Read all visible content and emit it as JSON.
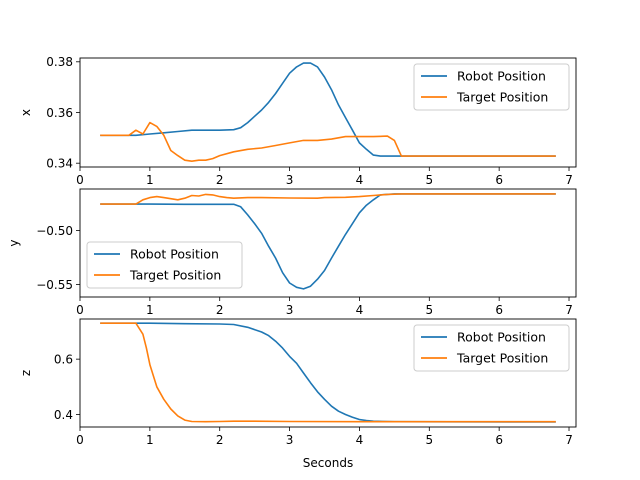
{
  "colors": {
    "robot": "#1f77b4",
    "target": "#ff7f0e"
  },
  "chart_data": [
    {
      "type": "line",
      "ylabel": "x",
      "xlim": [
        0,
        7.1
      ],
      "ylim": [
        0.3385,
        0.3815
      ],
      "xticks": [
        0,
        1,
        2,
        3,
        4,
        5,
        6,
        7
      ],
      "yticks": [
        0.34,
        0.36,
        0.38
      ],
      "ytick_labels": [
        "0.34",
        "0.36",
        "0.38"
      ],
      "legend": "top-right",
      "series": [
        {
          "name": "Robot Position",
          "color": "#1f77b4",
          "x": [
            0.3,
            0.8,
            1.0,
            1.2,
            1.4,
            1.6,
            1.8,
            2.0,
            2.2,
            2.3,
            2.4,
            2.5,
            2.6,
            2.7,
            2.8,
            2.9,
            3.0,
            3.1,
            3.2,
            3.3,
            3.4,
            3.5,
            3.6,
            3.7,
            3.8,
            3.9,
            4.0,
            4.1,
            4.2,
            4.3,
            4.5,
            6.8
          ],
          "y": [
            0.351,
            0.351,
            0.3515,
            0.352,
            0.3525,
            0.353,
            0.353,
            0.353,
            0.3532,
            0.354,
            0.356,
            0.3585,
            0.361,
            0.364,
            0.3675,
            0.3715,
            0.3755,
            0.378,
            0.3795,
            0.3795,
            0.378,
            0.374,
            0.369,
            0.363,
            0.358,
            0.353,
            0.348,
            0.3455,
            0.3432,
            0.3428,
            0.3428,
            0.3428
          ]
        },
        {
          "name": "Target Position",
          "color": "#ff7f0e",
          "x": [
            0.3,
            0.5,
            0.7,
            0.8,
            0.9,
            1.0,
            1.1,
            1.2,
            1.3,
            1.4,
            1.5,
            1.6,
            1.7,
            1.8,
            1.9,
            2.0,
            2.2,
            2.4,
            2.6,
            2.8,
            3.0,
            3.2,
            3.4,
            3.6,
            3.8,
            4.0,
            4.2,
            4.4,
            4.5,
            4.6,
            4.7,
            5.0,
            6.8
          ],
          "y": [
            0.351,
            0.351,
            0.351,
            0.353,
            0.3515,
            0.356,
            0.3545,
            0.351,
            0.345,
            0.343,
            0.3412,
            0.3408,
            0.3412,
            0.3412,
            0.3418,
            0.343,
            0.3445,
            0.3455,
            0.346,
            0.347,
            0.348,
            0.349,
            0.349,
            0.3495,
            0.3505,
            0.3505,
            0.3505,
            0.3507,
            0.349,
            0.3428,
            0.3428,
            0.3428,
            0.3428
          ]
        }
      ]
    },
    {
      "type": "line",
      "ylabel": "y",
      "xlim": [
        0,
        7.1
      ],
      "ylim": [
        -0.5615,
        -0.4615
      ],
      "xticks": [
        0,
        1,
        2,
        3,
        4,
        5,
        6,
        7
      ],
      "yticks": [
        -0.5,
        -0.55
      ],
      "ytick_labels": [
        "−0.50",
        "−0.55"
      ],
      "legend": "bottom-left",
      "series": [
        {
          "name": "Robot Position",
          "color": "#1f77b4",
          "x": [
            0.3,
            1.0,
            1.5,
            2.0,
            2.2,
            2.3,
            2.4,
            2.5,
            2.6,
            2.7,
            2.8,
            2.9,
            3.0,
            3.1,
            3.2,
            3.3,
            3.4,
            3.5,
            3.6,
            3.7,
            3.8,
            3.9,
            4.0,
            4.1,
            4.2,
            4.3,
            4.5,
            6.8
          ],
          "y": [
            -0.4755,
            -0.4755,
            -0.4757,
            -0.4757,
            -0.4757,
            -0.478,
            -0.4855,
            -0.4935,
            -0.5025,
            -0.5145,
            -0.5255,
            -0.539,
            -0.5485,
            -0.5525,
            -0.554,
            -0.5515,
            -0.545,
            -0.537,
            -0.5255,
            -0.5145,
            -0.5035,
            -0.4935,
            -0.4835,
            -0.4765,
            -0.4715,
            -0.467,
            -0.466,
            -0.466
          ]
        },
        {
          "name": "Target Position",
          "color": "#ff7f0e",
          "x": [
            0.3,
            0.8,
            0.9,
            1.0,
            1.1,
            1.2,
            1.3,
            1.4,
            1.5,
            1.6,
            1.7,
            1.8,
            1.9,
            2.0,
            2.1,
            2.2,
            2.4,
            2.6,
            3.0,
            3.4,
            3.5,
            3.8,
            4.0,
            4.2,
            4.4,
            4.6,
            6.8
          ],
          "y": [
            -0.4755,
            -0.4755,
            -0.4715,
            -0.4695,
            -0.4685,
            -0.4695,
            -0.4705,
            -0.4715,
            -0.47,
            -0.4675,
            -0.468,
            -0.4665,
            -0.467,
            -0.4685,
            -0.4695,
            -0.47,
            -0.4695,
            -0.4695,
            -0.4698,
            -0.47,
            -0.4695,
            -0.4692,
            -0.4685,
            -0.4675,
            -0.4665,
            -0.466,
            -0.466
          ]
        }
      ]
    },
    {
      "type": "line",
      "ylabel": "z",
      "xlabel": "Seconds",
      "xlim": [
        0,
        7.1
      ],
      "ylim": [
        0.355,
        0.745
      ],
      "xticks": [
        0,
        1,
        2,
        3,
        4,
        5,
        6,
        7
      ],
      "yticks": [
        0.4,
        0.6
      ],
      "ytick_labels": [
        "0.4",
        "0.6"
      ],
      "legend": "top-right",
      "series": [
        {
          "name": "Robot Position",
          "color": "#1f77b4",
          "x": [
            0.3,
            0.8,
            1.0,
            1.5,
            2.0,
            2.2,
            2.4,
            2.6,
            2.7,
            2.8,
            2.9,
            3.0,
            3.1,
            3.2,
            3.3,
            3.4,
            3.5,
            3.6,
            3.7,
            3.8,
            3.9,
            4.0,
            4.1,
            4.2,
            4.5,
            6.8
          ],
          "y": [
            0.73,
            0.73,
            0.73,
            0.728,
            0.727,
            0.725,
            0.715,
            0.698,
            0.685,
            0.665,
            0.64,
            0.61,
            0.585,
            0.55,
            0.515,
            0.482,
            0.455,
            0.43,
            0.412,
            0.4,
            0.39,
            0.382,
            0.378,
            0.376,
            0.374,
            0.373
          ]
        },
        {
          "name": "Target Position",
          "color": "#ff7f0e",
          "x": [
            0.3,
            0.8,
            0.9,
            0.95,
            1.0,
            1.1,
            1.2,
            1.3,
            1.4,
            1.5,
            1.6,
            1.8,
            2.0,
            2.2,
            2.5,
            3.0,
            4.0,
            5.0,
            6.8
          ],
          "y": [
            0.73,
            0.73,
            0.69,
            0.64,
            0.58,
            0.5,
            0.455,
            0.42,
            0.395,
            0.38,
            0.375,
            0.374,
            0.375,
            0.376,
            0.376,
            0.375,
            0.374,
            0.374,
            0.374
          ]
        }
      ]
    }
  ]
}
